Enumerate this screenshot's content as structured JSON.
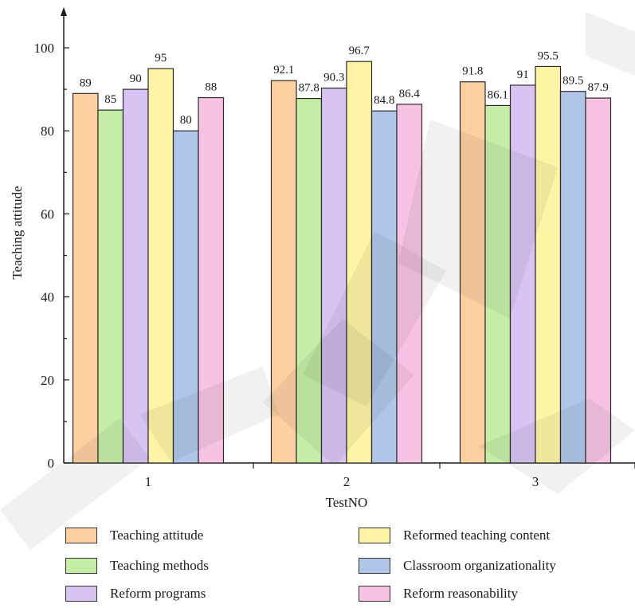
{
  "chart_data": {
    "type": "bar",
    "xlabel": "TestNO",
    "ylabel": "Teaching attitude",
    "ylim": [
      0,
      110
    ],
    "yticks": [
      0,
      20,
      40,
      60,
      80,
      100
    ],
    "categories": [
      "1",
      "2",
      "3"
    ],
    "series": [
      {
        "name": "Teaching attitude",
        "color": "#FDCFA1",
        "values": [
          89,
          92.1,
          91.8
        ],
        "labels": [
          "89",
          "92.1",
          "91.8"
        ]
      },
      {
        "name": "Teaching methods",
        "color": "#C4EDA6",
        "values": [
          85,
          87.8,
          86.1
        ],
        "labels": [
          "85",
          "87.8",
          "86.1"
        ]
      },
      {
        "name": "Reform programs",
        "color": "#D8C3F2",
        "values": [
          90,
          90.3,
          91
        ],
        "labels": [
          "90",
          "90.3",
          "91"
        ]
      },
      {
        "name": "Reformed teaching content",
        "color": "#FDF4A6",
        "values": [
          95,
          96.7,
          95.5
        ],
        "labels": [
          "95",
          "96.7",
          "95.5"
        ]
      },
      {
        "name": "Classroom organizationality",
        "color": "#AFC6E8",
        "values": [
          80,
          84.8,
          89.5
        ],
        "labels": [
          "80",
          "84.8",
          "89.5"
        ]
      },
      {
        "name": "Reform reasonability",
        "color": "#F7C2E3",
        "values": [
          88,
          86.4,
          87.9
        ],
        "labels": [
          "88",
          "86.4",
          "87.9"
        ]
      }
    ],
    "grid": false,
    "legend_placement": "bottom"
  }
}
